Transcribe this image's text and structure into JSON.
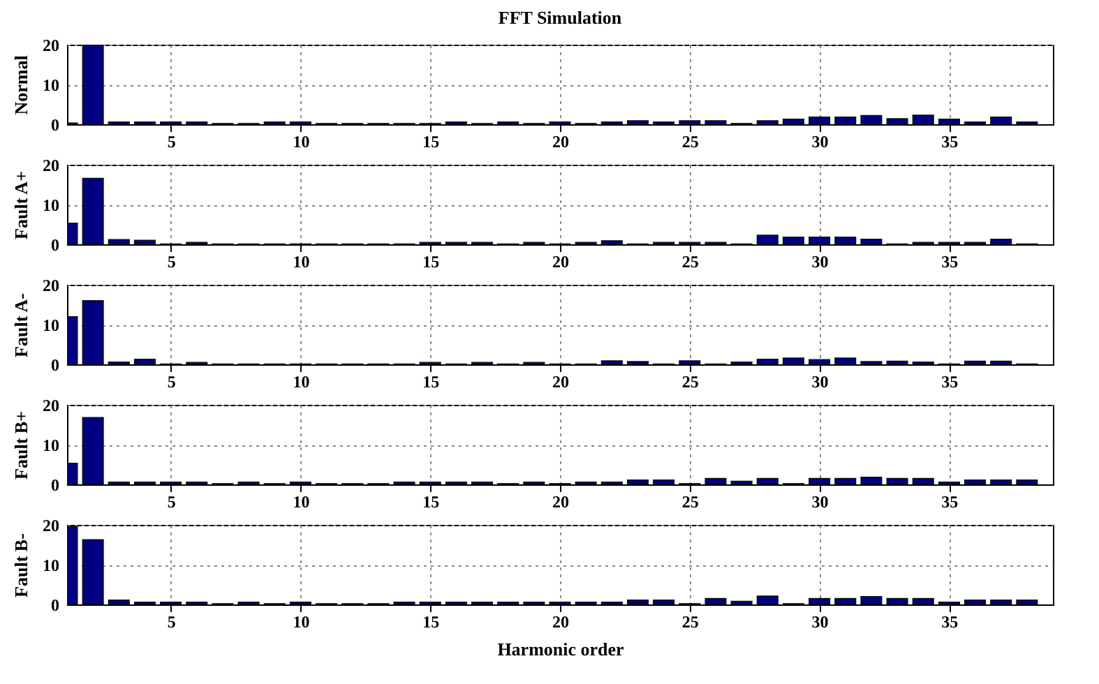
{
  "chart_data": [
    {
      "type": "bar",
      "title": "FFT Simulation",
      "ylabel": "Normal",
      "color": "#000080",
      "grid": true,
      "xlim": [
        1,
        39
      ],
      "xticks": [
        5,
        10,
        15,
        20,
        25,
        30,
        35
      ],
      "ylim": [
        0,
        20
      ],
      "yticks": [
        0,
        10,
        20
      ],
      "x": [
        1,
        2,
        3,
        4,
        5,
        6,
        7,
        8,
        9,
        10,
        11,
        12,
        13,
        14,
        15,
        16,
        17,
        18,
        19,
        20,
        21,
        22,
        23,
        24,
        25,
        26,
        27,
        28,
        29,
        30,
        31,
        32,
        33,
        34,
        35,
        36,
        37,
        38
      ],
      "values": [
        0.3,
        20,
        0.6,
        0.6,
        0.6,
        0.6,
        0.2,
        0.2,
        0.6,
        0.6,
        0.2,
        0.2,
        0.2,
        0.2,
        0.2,
        0.6,
        0.2,
        0.6,
        0.2,
        0.6,
        0.2,
        0.6,
        0.9,
        0.6,
        0.9,
        0.9,
        0.2,
        0.9,
        1.3,
        1.8,
        1.8,
        2.2,
        1.4,
        2.3,
        1.3,
        0.6,
        1.8,
        0.6
      ]
    },
    {
      "type": "bar",
      "ylabel": "Fault A+",
      "color": "#000080",
      "grid": true,
      "xlim": [
        1,
        39
      ],
      "xticks": [
        5,
        10,
        15,
        20,
        25,
        30,
        35
      ],
      "ylim": [
        0,
        20
      ],
      "yticks": [
        0,
        10,
        20
      ],
      "x": [
        1,
        2,
        3,
        4,
        5,
        6,
        7,
        8,
        9,
        10,
        11,
        12,
        13,
        14,
        15,
        16,
        17,
        18,
        19,
        20,
        21,
        22,
        23,
        24,
        25,
        26,
        27,
        28,
        29,
        30,
        31,
        32,
        33,
        34,
        35,
        36,
        37,
        38
      ],
      "values": [
        5.3,
        16.6,
        1.2,
        1,
        0.1,
        0.5,
        0.1,
        0.1,
        0.1,
        0.1,
        0.1,
        0.1,
        0.1,
        0.1,
        0.5,
        0.5,
        0.5,
        0.1,
        0.5,
        0.1,
        0.5,
        0.9,
        0.1,
        0.5,
        0.5,
        0.5,
        0.1,
        2.3,
        1.8,
        1.8,
        1.8,
        1.3,
        0.1,
        0.5,
        0.5,
        0.5,
        1.3,
        0.1
      ]
    },
    {
      "type": "bar",
      "ylabel": "Fault A-",
      "color": "#000080",
      "grid": true,
      "xlim": [
        1,
        39
      ],
      "xticks": [
        5,
        10,
        15,
        20,
        25,
        30,
        35
      ],
      "ylim": [
        0,
        20
      ],
      "yticks": [
        0,
        10,
        20
      ],
      "x": [
        1,
        2,
        3,
        4,
        5,
        6,
        7,
        8,
        9,
        10,
        11,
        12,
        13,
        14,
        15,
        16,
        17,
        18,
        19,
        20,
        21,
        22,
        23,
        24,
        25,
        26,
        27,
        28,
        29,
        30,
        31,
        32,
        33,
        34,
        35,
        36,
        37,
        38
      ],
      "values": [
        12,
        16,
        0.6,
        1.3,
        0.1,
        0.5,
        0.1,
        0.1,
        0.1,
        0.1,
        0.1,
        0.1,
        0.1,
        0.1,
        0.5,
        0.1,
        0.5,
        0.1,
        0.5,
        0.1,
        0.1,
        0.9,
        0.7,
        0.1,
        0.9,
        0.1,
        0.6,
        1.3,
        1.6,
        1.2,
        1.6,
        0.7,
        0.8,
        0.6,
        0.1,
        0.8,
        0.8,
        0.1
      ]
    },
    {
      "type": "bar",
      "ylabel": "Fault B+",
      "color": "#000080",
      "grid": true,
      "xlim": [
        1,
        39
      ],
      "xticks": [
        5,
        10,
        15,
        20,
        25,
        30,
        35
      ],
      "ylim": [
        0,
        20
      ],
      "yticks": [
        0,
        10,
        20
      ],
      "x": [
        1,
        2,
        3,
        4,
        5,
        6,
        7,
        8,
        9,
        10,
        11,
        12,
        13,
        14,
        15,
        16,
        17,
        18,
        19,
        20,
        21,
        22,
        23,
        24,
        25,
        26,
        27,
        28,
        29,
        30,
        31,
        32,
        33,
        34,
        35,
        36,
        37,
        38
      ],
      "values": [
        5.3,
        16.8,
        0.6,
        0.6,
        0.6,
        0.6,
        0.2,
        0.6,
        0.2,
        0.6,
        0.2,
        0.2,
        0.2,
        0.6,
        0.6,
        0.6,
        0.6,
        0.2,
        0.6,
        0.2,
        0.6,
        0.6,
        1.1,
        1.1,
        0.2,
        1.5,
        0.8,
        1.5,
        0.2,
        1.5,
        1.5,
        1.8,
        1.5,
        1.5,
        0.6,
        1.1,
        1.1,
        1.1
      ]
    },
    {
      "type": "bar",
      "ylabel": "Fault B-",
      "xlabel": "Harmonic order",
      "color": "#000080",
      "grid": true,
      "xlim": [
        1,
        39
      ],
      "xticks": [
        5,
        10,
        15,
        20,
        25,
        30,
        35
      ],
      "ylim": [
        0,
        20
      ],
      "yticks": [
        0,
        10,
        20
      ],
      "x": [
        1,
        2,
        3,
        4,
        5,
        6,
        7,
        8,
        9,
        10,
        11,
        12,
        13,
        14,
        15,
        16,
        17,
        18,
        19,
        20,
        21,
        22,
        23,
        24,
        25,
        26,
        27,
        28,
        29,
        30,
        31,
        32,
        33,
        34,
        35,
        36,
        37,
        38
      ],
      "values": [
        19.6,
        16.3,
        1.1,
        0.6,
        0.6,
        0.6,
        0.2,
        0.6,
        0.2,
        0.6,
        0.2,
        0.2,
        0.2,
        0.6,
        0.6,
        0.6,
        0.6,
        0.6,
        0.6,
        0.6,
        0.6,
        0.6,
        1.1,
        1.1,
        0.2,
        1.5,
        0.8,
        2.1,
        0.2,
        1.5,
        1.5,
        2,
        1.5,
        1.5,
        0.6,
        1.1,
        1.1,
        1.1
      ]
    }
  ]
}
